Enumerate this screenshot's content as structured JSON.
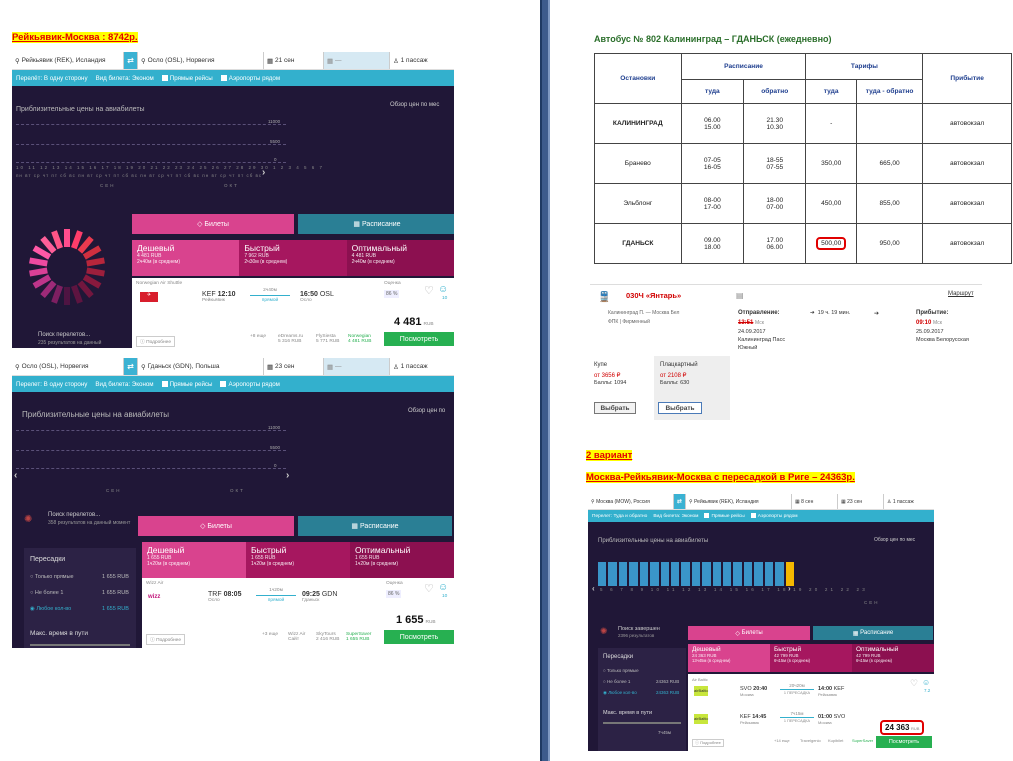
{
  "left": {
    "title1": "Рейкьявик-Москва  : 8742р.",
    "shot1": {
      "from": "Рейкьявик (REK), Исландия",
      "to": "Осло (OSL), Норвегия",
      "date": "21 сен",
      "return": "—",
      "pass": "1 пассаж",
      "trip": "Перелёт: В одну сторону",
      "ticket": "Вид билета: Эконом",
      "direct": "Прямые рейсы",
      "nearby": "Аэропорты рядом",
      "chart_title": "Приблизительные цены на авиабилеты",
      "zoom": "Обзор цен по мес",
      "y_top": "11000",
      "y_mid": "5500",
      "y_low": "0",
      "days": "10 11 12 13 14 15 16 17 18 19 20 21 22 23 24 25 26 27 28 29 30 1 2 3 4 5 6 7",
      "wdays": "пн вт ср чт пт сб вс пн вт ср чт пт сб вс пн вт ср чт пт сб вс пн вт ср чт пт сб вс",
      "m1": "СЕН",
      "m2": "ОКТ",
      "tab_tickets": "Билеты",
      "tab_schedule": "Расписание",
      "cheap": "Дешевый",
      "cheap_p": "4 481 RUB",
      "cheap_d": "2ч40м (в среднем)",
      "fast": "Быстрый",
      "fast_p": "7 962 RUB",
      "fast_d": "2ч30м (в среднем)",
      "opt": "Оптимальный",
      "opt_p": "4 481 RUB",
      "opt_d": "2ч40м (в среднем)",
      "search": "Поиск перелетов...",
      "search_sub": "235 результатов на данный",
      "airline": "Norwegian Air Shuttle",
      "dep_code": "KEF",
      "dep_time": "12:10",
      "dep_city": "Рейкьявик",
      "duration": "2ч40м",
      "direct_lbl": "прямой",
      "arr_time": "16:50",
      "arr_code": "OSL",
      "arr_city": "Осло",
      "score_lbl": "Оценка",
      "score": "86 %",
      "fav_count": "10",
      "more": "Подробнее",
      "more_cnt": "+8 еще",
      "p1": "eDreams.ru",
      "p1v": "5 316 RUB",
      "p2": "FlySiesta",
      "p2v": "5 771 RUB",
      "p3": "Norwegian",
      "p3v": "4 481 RUB",
      "price": "4 481",
      "cur": "RUB",
      "view": "Посмотреть"
    },
    "shot2": {
      "from": "Осло (OSL), Норвегия",
      "to": "Гданьск (GDN), Польша",
      "date": "23 сен",
      "return": "—",
      "pass": "1 пассаж",
      "trip": "Перелет: В одну сторону",
      "ticket": "Вид билета: Эконом",
      "direct": "Прямые рейсы",
      "nearby": "Аэропорты рядом",
      "chart_title": "Приблизительные цены на авиабилеты",
      "zoom": "Обзор цен по",
      "y_top": "11000",
      "y_mid": "5500",
      "y_low": "0",
      "m1": "СЕН",
      "m2": "ОКТ",
      "search": "Поиск перелетов...",
      "search_sub": "358 результатов на данный момент",
      "tab_tickets": "Билеты",
      "tab_schedule": "Расписание",
      "transfers": "Пересадки",
      "o1": "Только прямые",
      "o1v": "1 655 RUB",
      "o2": "Не более 1",
      "o2v": "1 655 RUB",
      "o3": "Любое кол-во",
      "o3v": "1 655 RUB",
      "maxtime": "Макс. время в пути",
      "cheap": "Дешевый",
      "cheap_p": "1 655 RUB",
      "cheap_d": "1ч20м (в среднем)",
      "fast": "Быстрый",
      "fast_p": "1 655 RUB",
      "fast_d": "1ч20м (в среднем)",
      "opt": "Оптимальный",
      "opt_p": "1 655 RUB",
      "opt_d": "1ч20м (в среднем)",
      "airline": "Wizz Air",
      "dep_code": "TRF",
      "dep_time": "08:05",
      "dep_city": "Осло",
      "duration": "1ч20м",
      "direct_lbl": "прямой",
      "arr_time": "09:25",
      "arr_code": "GDN",
      "arr_city": "Гданьск",
      "score_lbl": "Оценка",
      "score": "86 %",
      "fav_count": "10",
      "more": "Подробнее",
      "more_cnt": "+3 еще",
      "p1": "Wizz Air",
      "p1v": "Сайт",
      "p2": "SkyTours",
      "p2v": "2 416 RUB",
      "p3": "SuperSaver",
      "p3v": "1 655 RUB",
      "price": "1 655",
      "cur": "RUB",
      "view": "Посмотреть"
    }
  },
  "right": {
    "bus_title": "Автобус № 802 Калининград – ГДАНЬСК (ежедневно)",
    "headers": {
      "stops": "Остановки",
      "schedule": "Расписание",
      "tariffs": "Тарифы",
      "arrival": "Прибытие",
      "there": "туда",
      "back": "обратно",
      "there2": "туда",
      "both": "туда - обратно"
    },
    "rows": [
      {
        "stop": "КАЛИНИНГРАД",
        "t1": "06.00",
        "t2": "15.00",
        "b1": "21.30",
        "b2": "10.30",
        "fare": "-",
        "rt": "",
        "arr": "автовокзал"
      },
      {
        "stop": "Бранево",
        "t1": "07-05",
        "t2": "16-05",
        "b1": "18-55",
        "b2": "07-55",
        "fare": "350,00",
        "rt": "665,00",
        "arr": "автовокзал"
      },
      {
        "stop": "Эльблонг",
        "t1": "08-00",
        "t2": "17-00",
        "b1": "18-00",
        "b2": "07-00",
        "fare": "450,00",
        "rt": "855,00",
        "arr": "автовокзал"
      },
      {
        "stop": "ГДАНЬСК",
        "t1": "09.00",
        "t2": "18.00",
        "b1": "17.00",
        "b2": "06.00",
        "fare": "500,00",
        "rt": "950,00",
        "arr": "автовокзал"
      }
    ],
    "train": {
      "name": "030Ч «Янтарь»",
      "route": "Маршрут",
      "sub1": "Калининград П. — Москва Бел",
      "sub2": "ФПК | Фирменный",
      "dep_lbl": "Отправление:",
      "dep_time": "13:51",
      "dep_tz": "Мск",
      "dep_date": "24.09.2017",
      "dep_st": "Калининград Пасс",
      "dep_st2": "Южный",
      "dur": "19 ч. 19 мин.",
      "arr_lbl": "Прибытие:",
      "arr_time": "09:10",
      "arr_tz": "Мск",
      "arr_date": "25.09.2017",
      "arr_st": "Москва Белорусская",
      "kupe": "Купе",
      "kupe_p": "от 3656 ₽",
      "kupe_b": "Баллы: 1094",
      "plac": "Плацкартный",
      "plac_p": "от 2108 ₽",
      "plac_b": "Баллы: 630",
      "choose": "Выбрать"
    },
    "variant": "2 вариант",
    "title2": "Москва-Рейкьявик-Москва   с  пересадкой в Риге – 24363р.",
    "shot3": {
      "from": "Москва (MOW), Россия",
      "to": "Рейкьявик (REK), Исландия",
      "date": "8 сен",
      "date2": "23 сен",
      "pass": "1 пассаж",
      "trip": "Перелет: Туда и обратно",
      "ticket": "Вид билета: Эконом",
      "direct": "Прямые рейсы",
      "nearby": "Аэропорты рядом",
      "chart_title": "Приблизительные цены на авиабилеты",
      "zoom": "Обзор цен по мес",
      "days": "5 6 7 8 9 10 11 12 13 14 15 16 17 18 19 20 21 22 23",
      "m1": "СЕН",
      "search": "Поиск завершен",
      "search_sub": "2396 результатов",
      "tab_tickets": "Билеты",
      "tab_schedule": "Расписание",
      "transfers": "Пересадки",
      "o1": "Только прямые",
      "o2": "Не более 1",
      "o2v": "24363 RUB",
      "o3": "Любое кол-во",
      "o3v": "24363 RUB",
      "maxtime": "Макс. время в пути",
      "maxv": "7ч45м",
      "cheap": "Дешевый",
      "cheap_p": "24 363 RUB",
      "cheap_d": "13ч45м (в среднем)",
      "fast": "Быстрый",
      "fast_p": "42 799 RUB",
      "fast_d": "6ч15м (в среднем)",
      "opt": "Оптимальный",
      "opt_p": "42 799 RUB",
      "opt_d": "6ч15м (в среднем)",
      "airline": "Air Baltic",
      "f1_dep_code": "SVO",
      "f1_dep_time": "20:40",
      "f1_dep_city": "Москва",
      "f1_dur": "20ч20м",
      "f1_trans": "1 ПЕРЕСАДКА",
      "f1_arr_time": "14:00",
      "f1_arr_code": "KEF",
      "f1_arr_city": "Рейкьявик",
      "f2_dep_code": "KEF",
      "f2_dep_time": "14:45",
      "f2_dep_city": "Рейкьявик",
      "f2_dur": "7ч15м",
      "f2_trans": "1 ПЕРЕСАДКА",
      "f2_arr_time": "01:00",
      "f2_arr_code": "SVO",
      "f2_arr_city": "Москва",
      "score": "7.2",
      "more": "Подробнее",
      "more_cnt": "+14 еще",
      "p1": "Travelgenio",
      "p2": "Kupibilet",
      "p3": "SuperSaver",
      "price": "24 363",
      "cur": "RUB",
      "view": "Посмотреть"
    }
  }
}
